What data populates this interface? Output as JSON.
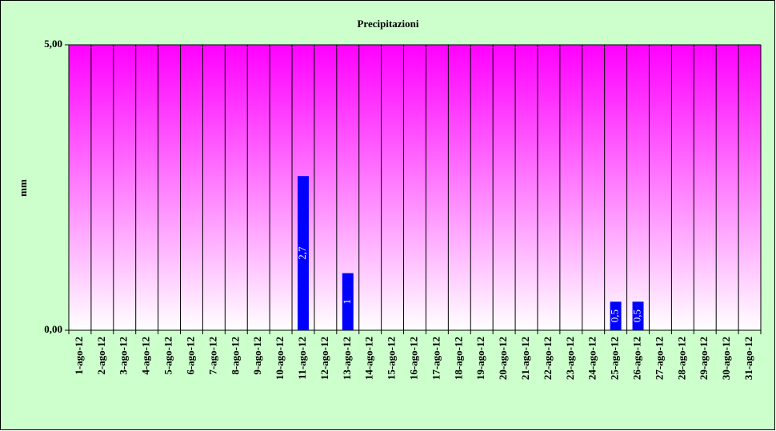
{
  "chart_data": {
    "type": "bar",
    "title": "Precipitazioni",
    "y_label": "mm",
    "categories": [
      "1-ago-12",
      "2-ago-12",
      "3-ago-12",
      "4-ago-12",
      "5-ago-12",
      "6-ago-12",
      "7-ago-12",
      "8-ago-12",
      "9-ago-12",
      "10-ago-12",
      "11-ago-12",
      "12-ago-12",
      "13-ago-12",
      "14-ago-12",
      "15-ago-12",
      "16-ago-12",
      "17-ago-12",
      "18-ago-12",
      "19-ago-12",
      "20-ago-12",
      "21-ago-12",
      "22-ago-12",
      "23-ago-12",
      "24-ago-12",
      "25-ago-12",
      "26-ago-12",
      "27-ago-12",
      "28-ago-12",
      "29-ago-12",
      "30-ago-12",
      "31-ago-12"
    ],
    "values": [
      null,
      null,
      null,
      null,
      null,
      null,
      null,
      null,
      null,
      null,
      2.7,
      null,
      1,
      null,
      null,
      null,
      null,
      null,
      null,
      null,
      null,
      null,
      null,
      null,
      0.5,
      0.5,
      null,
      null,
      null,
      null,
      null
    ],
    "value_labels": [
      null,
      null,
      null,
      null,
      null,
      null,
      null,
      null,
      null,
      null,
      "2,7",
      null,
      "1",
      null,
      null,
      null,
      null,
      null,
      null,
      null,
      null,
      null,
      null,
      null,
      "0,5",
      "0,5",
      null,
      null,
      null,
      null,
      null
    ],
    "color": "#0000ff",
    "ylim": [
      0,
      5
    ],
    "yticks": [
      {
        "value": 0,
        "label": "0,00"
      },
      {
        "value": 5,
        "label": "5,00"
      }
    ]
  }
}
